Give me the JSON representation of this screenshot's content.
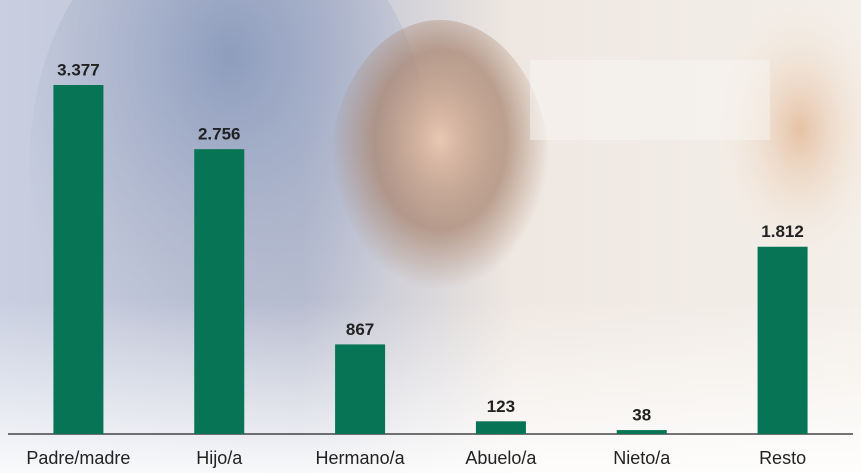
{
  "chart_data": {
    "type": "bar",
    "categories": [
      "Padre/madre",
      "Hijo/a",
      "Hermano/a",
      "Abuelo/a",
      "Nieto/a",
      "Resto"
    ],
    "values": [
      3377,
      2756,
      867,
      123,
      38,
      1812
    ],
    "value_labels": [
      "3.377",
      "2.756",
      "867",
      "123",
      "38",
      "1.812"
    ],
    "color": "#077555"
  }
}
